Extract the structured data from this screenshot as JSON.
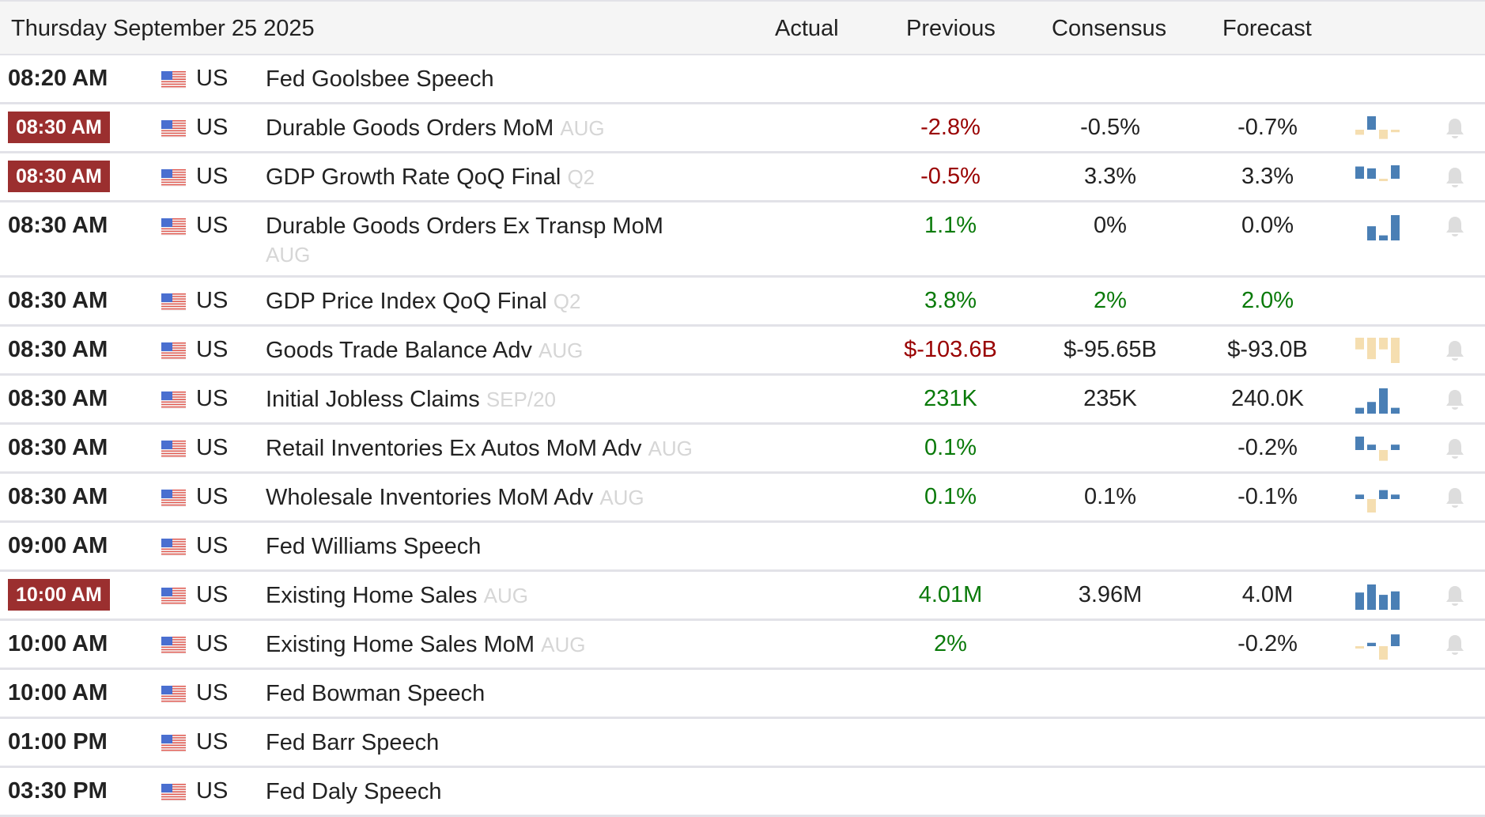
{
  "header": {
    "date": "Thursday September 25 2025",
    "actual": "Actual",
    "previous": "Previous",
    "consensus": "Consensus",
    "forecast": "Forecast"
  },
  "colors": {
    "highlight": "#9b2f2f",
    "negative": "#990000",
    "positive": "#0a7a0a",
    "spark_up": "#4a7fb5",
    "spark_down": "#f5deb0",
    "bell": "#dddddd"
  },
  "events": [
    {
      "time": "08:20 AM",
      "hl": false,
      "country": "US",
      "event": "Fed Goolsbee Speech",
      "ref": "",
      "actual": "",
      "previous": "",
      "previous_tone": "",
      "consensus": "",
      "consensus_tone": "",
      "forecast": "",
      "forecast_tone": "",
      "spark": [],
      "bell": false
    },
    {
      "time": "08:30 AM",
      "hl": true,
      "country": "US",
      "event": "Durable Goods Orders MoM",
      "ref": "AUG",
      "actual": "",
      "previous": "-2.8%",
      "previous_tone": "neg",
      "consensus": "-0.5%",
      "consensus_tone": "",
      "forecast": "-0.7%",
      "forecast_tone": "",
      "spark": [
        -0.6,
        1.6,
        -1.1,
        -0.3
      ],
      "bell": true
    },
    {
      "time": "08:30 AM",
      "hl": true,
      "country": "US",
      "event": "GDP Growth Rate QoQ Final",
      "ref": "Q2",
      "actual": "",
      "previous": "-0.5%",
      "previous_tone": "neg",
      "consensus": "3.3%",
      "consensus_tone": "",
      "forecast": "3.3%",
      "forecast_tone": "",
      "spark": [
        2.0,
        1.7,
        -0.3,
        2.2
      ],
      "bell": true
    },
    {
      "time": "08:30 AM",
      "hl": false,
      "country": "US",
      "event": "Durable Goods Orders Ex Transp MoM",
      "ref": "AUG",
      "actual": "",
      "previous": "1.1%",
      "previous_tone": "pos",
      "consensus": "0%",
      "consensus_tone": "",
      "forecast": "0.0%",
      "forecast_tone": "",
      "spark": [
        0,
        1.4,
        0.5,
        2.5
      ],
      "bell": true,
      "tall": true
    },
    {
      "time": "08:30 AM",
      "hl": false,
      "country": "US",
      "event": "GDP Price Index QoQ Final",
      "ref": "Q2",
      "actual": "",
      "previous": "3.8%",
      "previous_tone": "pos",
      "consensus": "2%",
      "consensus_tone": "pos",
      "forecast": "2.0%",
      "forecast_tone": "pos",
      "spark": [],
      "bell": false
    },
    {
      "time": "08:30 AM",
      "hl": false,
      "country": "US",
      "event": "Goods Trade Balance Adv",
      "ref": "AUG",
      "actual": "",
      "previous": "$-103.6B",
      "previous_tone": "neg",
      "consensus": "$-95.65B",
      "consensus_tone": "",
      "forecast": "$-93.0B",
      "forecast_tone": "",
      "spark": [
        -0.6,
        -1.1,
        -0.6,
        -1.3
      ],
      "bell": true
    },
    {
      "time": "08:30 AM",
      "hl": false,
      "country": "US",
      "event": "Initial Jobless Claims",
      "ref": "SEP/20",
      "actual": "",
      "previous": "231K",
      "previous_tone": "pos",
      "consensus": "235K",
      "consensus_tone": "",
      "forecast": "240.0K",
      "forecast_tone": "",
      "spark": [
        0.3,
        0.6,
        1.3,
        0.3
      ],
      "bell": true
    },
    {
      "time": "08:30 AM",
      "hl": false,
      "country": "US",
      "event": "Retail Inventories Ex Autos MoM Adv",
      "ref": "AUG",
      "actual": "",
      "previous": "0.1%",
      "previous_tone": "pos",
      "consensus": "",
      "consensus_tone": "",
      "forecast": "-0.2%",
      "forecast_tone": "",
      "spark": [
        0.5,
        0.2,
        -0.4,
        0.2
      ],
      "bell": true
    },
    {
      "time": "08:30 AM",
      "hl": false,
      "country": "US",
      "event": "Wholesale Inventories MoM Adv",
      "ref": "AUG",
      "actual": "",
      "previous": "0.1%",
      "previous_tone": "pos",
      "consensus": "0.1%",
      "consensus_tone": "",
      "forecast": "-0.1%",
      "forecast_tone": "",
      "spark": [
        0.2,
        -0.6,
        0.4,
        0.2
      ],
      "bell": true
    },
    {
      "time": "09:00 AM",
      "hl": false,
      "country": "US",
      "event": "Fed Williams Speech",
      "ref": "",
      "actual": "",
      "previous": "",
      "previous_tone": "",
      "consensus": "",
      "consensus_tone": "",
      "forecast": "",
      "forecast_tone": "",
      "spark": [],
      "bell": false
    },
    {
      "time": "10:00 AM",
      "hl": true,
      "country": "US",
      "event": "Existing Home Sales",
      "ref": "AUG",
      "actual": "",
      "previous": "4.01M",
      "previous_tone": "pos",
      "consensus": "3.96M",
      "consensus_tone": "",
      "forecast": "4.0M",
      "forecast_tone": "",
      "spark": [
        1.5,
        2.2,
        1.3,
        1.6
      ],
      "bell": true
    },
    {
      "time": "10:00 AM",
      "hl": false,
      "country": "US",
      "event": "Existing Home Sales MoM",
      "ref": "AUG",
      "actual": "",
      "previous": "2%",
      "previous_tone": "pos",
      "consensus": "",
      "consensus_tone": "",
      "forecast": "-0.2%",
      "forecast_tone": "",
      "spark": [
        -0.1,
        0.2,
        -0.8,
        0.7
      ],
      "bell": true
    },
    {
      "time": "10:00 AM",
      "hl": false,
      "country": "US",
      "event": "Fed Bowman Speech",
      "ref": "",
      "actual": "",
      "previous": "",
      "previous_tone": "",
      "consensus": "",
      "consensus_tone": "",
      "forecast": "",
      "forecast_tone": "",
      "spark": [],
      "bell": false
    },
    {
      "time": "01:00 PM",
      "hl": false,
      "country": "US",
      "event": "Fed Barr Speech",
      "ref": "",
      "actual": "",
      "previous": "",
      "previous_tone": "",
      "consensus": "",
      "consensus_tone": "",
      "forecast": "",
      "forecast_tone": "",
      "spark": [],
      "bell": false
    },
    {
      "time": "03:30 PM",
      "hl": false,
      "country": "US",
      "event": "Fed Daly Speech",
      "ref": "",
      "actual": "",
      "previous": "",
      "previous_tone": "",
      "consensus": "",
      "consensus_tone": "",
      "forecast": "",
      "forecast_tone": "",
      "spark": [],
      "bell": false
    }
  ]
}
